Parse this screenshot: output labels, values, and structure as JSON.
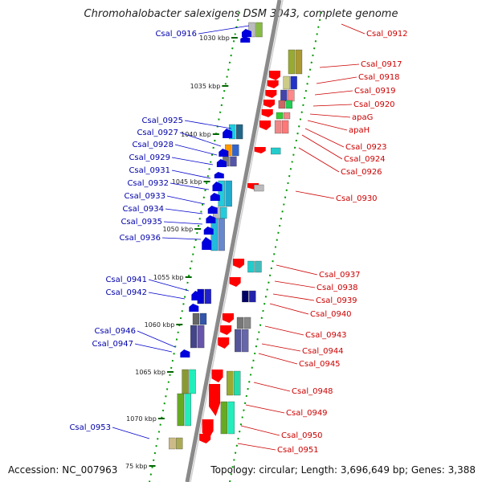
{
  "title": "Chromohalobacter salexigens DSM 3043, complete genome",
  "footer": {
    "accession": "Accession: NC_007963",
    "topology": "Topology: circular; Length: 3,696,649 bp; Genes: 3,388"
  },
  "kbp_labels": [
    "1030 kbp",
    "1035 kbp",
    "1040 kbp",
    "1045 kbp",
    "1050 kbp",
    "1055 kbp",
    "1060 kbp",
    "1065 kbp",
    "1070 kbp",
    "75 kbp"
  ],
  "left_labels": [
    "Csal_0916",
    "Csal_0925",
    "Csal_0927",
    "Csal_0928",
    "Csal_0929",
    "Csal_0931",
    "Csal_0932",
    "Csal_0933",
    "Csal_0934",
    "Csal_0935",
    "Csal_0936",
    "Csal_0941",
    "Csal_0942",
    "Csal_0946",
    "Csal_0947",
    "Csal_0953"
  ],
  "right_labels": [
    "Csal_0912",
    "Csal_0917",
    "Csal_0918",
    "Csal_0919",
    "Csal_0920",
    "apaG",
    "apaH",
    "Csal_0923",
    "Csal_0924",
    "Csal_0926",
    "Csal_0930",
    "Csal_0937",
    "Csal_0938",
    "Csal_0939",
    "Csal_0940",
    "Csal_0943",
    "Csal_0944",
    "Csal_0945",
    "Csal_0948",
    "Csal_0949",
    "Csal_0950",
    "Csal_0951"
  ],
  "colors": {
    "forward_strand": "#0000dd",
    "reverse_strand": "#ff0000",
    "left_label_text": "#0000aa",
    "right_label_text": "#cc0000",
    "tick_marks": "#008800",
    "backbone": "#8a8a8a"
  }
}
